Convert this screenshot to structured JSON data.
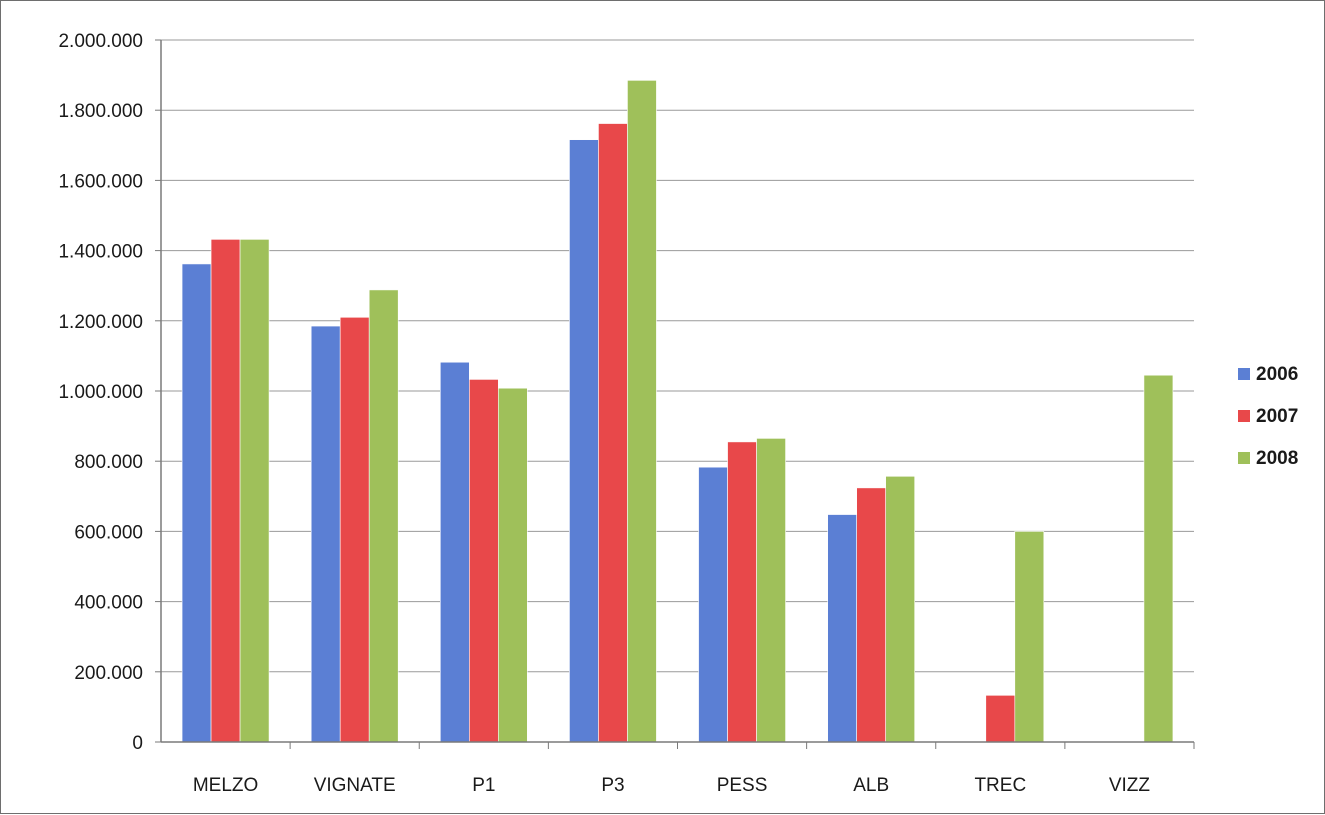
{
  "chart_data": {
    "type": "bar",
    "categories": [
      "MELZO",
      "VIGNATE",
      "P1",
      "P3",
      "PESS",
      "ALB",
      "TREC",
      "VIZZ"
    ],
    "series": [
      {
        "name": "2006",
        "color": "#5b7fd4",
        "values": [
          1362000,
          1185000,
          1082000,
          1716000,
          783000,
          648000,
          null,
          null
        ]
      },
      {
        "name": "2007",
        "color": "#e8484a",
        "values": [
          1432000,
          1210000,
          1033000,
          1762000,
          855000,
          724000,
          133000,
          null
        ]
      },
      {
        "name": "2008",
        "color": "#9fc05a",
        "values": [
          1432000,
          1288000,
          1008000,
          1885000,
          865000,
          757000,
          600000,
          1045000
        ]
      }
    ],
    "ylim": [
      0,
      2000000
    ],
    "yticks": [
      "0",
      "200.000",
      "400.000",
      "600.000",
      "800.000",
      "1.000.000",
      "1.200.000",
      "1.400.000",
      "1.600.000",
      "1.800.000",
      "2.000.000"
    ],
    "grid": true,
    "legend_position": "right"
  }
}
